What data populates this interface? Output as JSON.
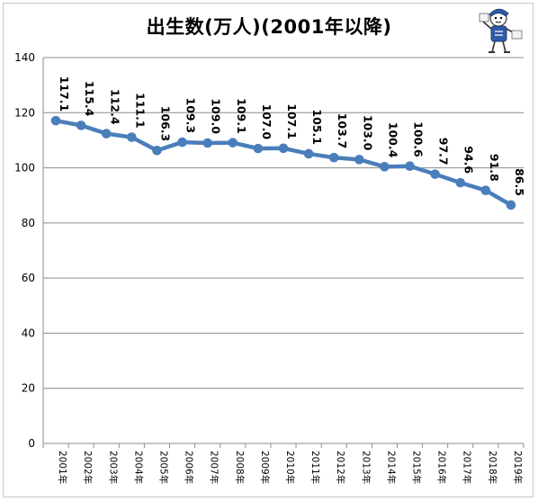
{
  "chart_data": {
    "type": "line",
    "title": "出生数(万人)(2001年以降)",
    "categories": [
      "2001年",
      "2002年",
      "2003年",
      "2004年",
      "2005年",
      "2006年",
      "2007年",
      "2008年",
      "2009年",
      "2010年",
      "2011年",
      "2012年",
      "2013年",
      "2014年",
      "2015年",
      "2016年",
      "2017年",
      "2018年",
      "2019年"
    ],
    "values": [
      117.1,
      115.4,
      112.4,
      111.1,
      106.3,
      109.3,
      109.0,
      109.1,
      107.0,
      107.1,
      105.1,
      103.7,
      103.0,
      100.4,
      100.6,
      97.7,
      94.6,
      91.8,
      86.5
    ],
    "value_labels": [
      "117.1",
      "115.4",
      "112.4",
      "111.1",
      "106.3",
      "109.3",
      "109.0",
      "109.1",
      "107.0",
      "107.1",
      "105.1",
      "103.7",
      "103.0",
      "100.4",
      "100.6",
      "97.7",
      "94.6",
      "91.8",
      "86.5"
    ],
    "ylim": [
      0,
      140
    ],
    "yticks": [
      "0",
      "20",
      "40",
      "60",
      "80",
      "100",
      "120",
      "140"
    ],
    "grid": true,
    "legend": "none",
    "xlabel": "",
    "ylabel": "",
    "color": "#4a7ebb"
  }
}
